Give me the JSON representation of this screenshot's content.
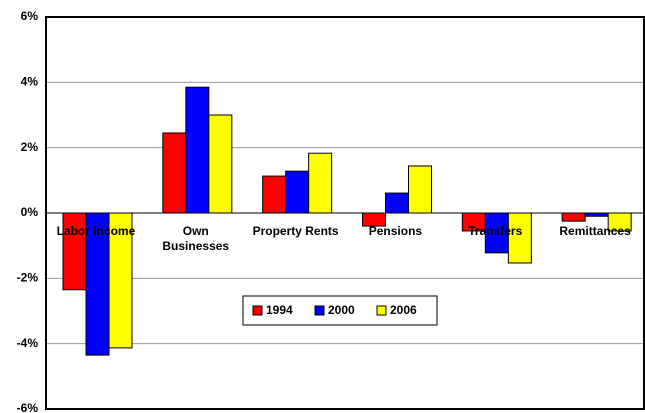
{
  "chart_data": {
    "type": "bar",
    "categories": [
      "Labor Income",
      "Own Businesses",
      "Property Rents",
      "Pensions",
      "Transfers",
      "Remittances"
    ],
    "series": [
      {
        "name": "1994",
        "color": "#ff0000",
        "values": [
          -2.35,
          2.45,
          1.13,
          -0.4,
          -0.55,
          -0.25
        ]
      },
      {
        "name": "2000",
        "color": "#0000ff",
        "values": [
          -4.35,
          3.85,
          1.28,
          0.61,
          -1.22,
          -0.1
        ]
      },
      {
        "name": "2006",
        "color": "#ffff00",
        "values": [
          -4.13,
          3.0,
          1.83,
          1.44,
          -1.53,
          -0.55
        ]
      }
    ],
    "ylim": [
      -6,
      6
    ],
    "yticks": [
      {
        "value": -6,
        "label": "-6%"
      },
      {
        "value": -4,
        "label": "-4%"
      },
      {
        "value": -2,
        "label": "-2%"
      },
      {
        "value": 0,
        "label": "0%"
      },
      {
        "value": 2,
        "label": "2%"
      },
      {
        "value": 4,
        "label": "4%"
      },
      {
        "value": 6,
        "label": "6%"
      }
    ],
    "grid": true,
    "legend": "center"
  }
}
